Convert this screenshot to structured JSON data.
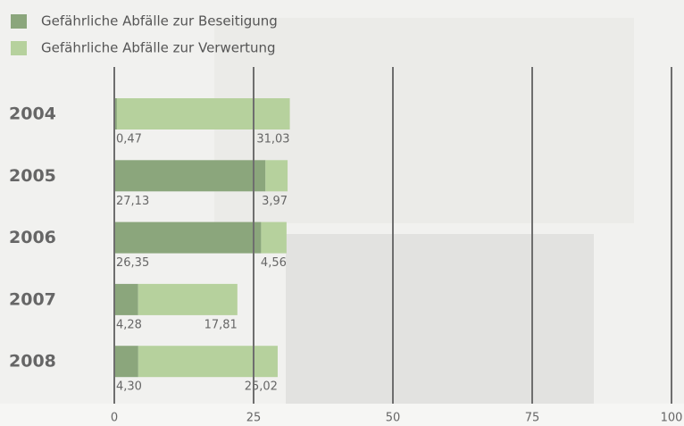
{
  "chart_data": {
    "type": "bar",
    "orientation": "horizontal",
    "stacked": true,
    "categories": [
      "2004",
      "2005",
      "2006",
      "2007",
      "2008"
    ],
    "series": [
      {
        "name": "Gefährliche Abfälle zur Beseitigung",
        "color": "#8ba67c",
        "values": [
          0.47,
          27.13,
          26.35,
          4.28,
          4.3
        ],
        "value_labels": [
          "0,47",
          "27,13",
          "26,35",
          "4,28",
          "4,30"
        ]
      },
      {
        "name": "Gefährliche Abfälle zur Verwertung",
        "color": "#b6d19d",
        "values": [
          31.03,
          3.97,
          4.56,
          17.81,
          25.02
        ],
        "value_labels": [
          "31,03",
          "3,97",
          "4,56",
          "17,81",
          "25,02"
        ]
      }
    ],
    "xlim": [
      0,
      100
    ],
    "xticks": [
      0,
      25,
      50,
      75,
      100
    ],
    "grid": true,
    "legend": "top-left"
  }
}
